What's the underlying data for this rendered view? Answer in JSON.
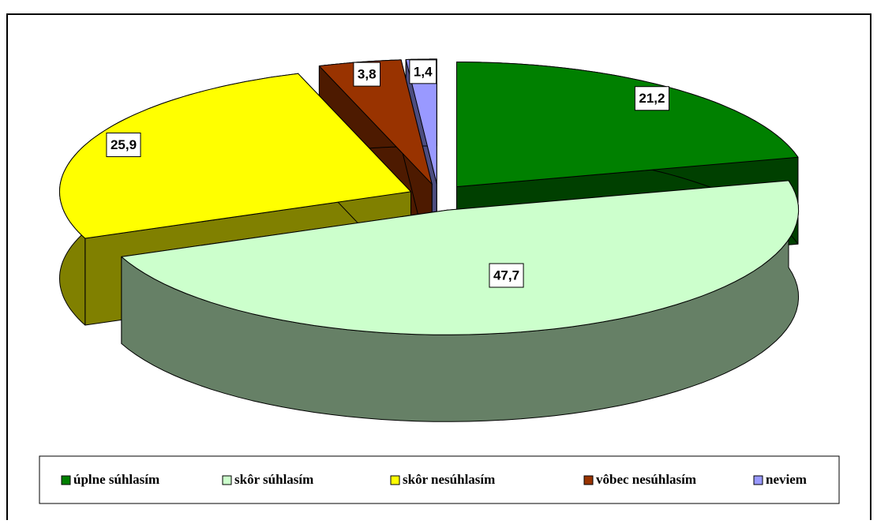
{
  "chart_data": {
    "type": "pie",
    "categories": [
      "úplne súhlasím",
      "skôr súhlasím",
      "skôr nesúhlasím",
      "vôbec nesúhlasím",
      "neviem"
    ],
    "values": [
      21.2,
      47.7,
      25.9,
      3.8,
      1.4
    ],
    "value_labels": [
      "21,2",
      "47,7",
      "25,9",
      "3,8",
      "1,4"
    ],
    "colors": [
      "#008000",
      "#ccffcc",
      "#ffff00",
      "#993300",
      "#9999ff"
    ]
  }
}
